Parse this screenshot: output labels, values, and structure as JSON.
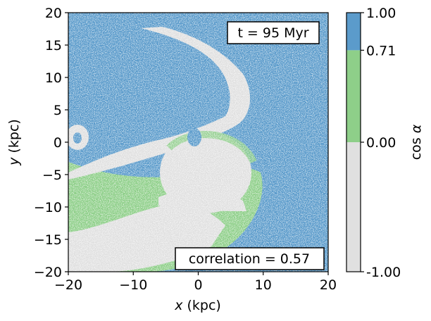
{
  "chart_data": {
    "type": "heatmap",
    "xlabel": "x (kpc)",
    "ylabel": "y (kpc)",
    "xlim": [
      -20,
      20
    ],
    "ylim": [
      -20,
      20
    ],
    "xticks": [
      -20,
      -10,
      0,
      10,
      20
    ],
    "yticks": [
      -20,
      -15,
      -10,
      -5,
      0,
      5,
      10,
      15,
      20
    ],
    "xtick_labels": [
      "−20",
      "−10",
      "0",
      "10",
      "20"
    ],
    "ytick_labels": [
      "−20",
      "−15",
      "−10",
      "−5",
      "0",
      "5",
      "10",
      "15",
      "20"
    ],
    "colorbar": {
      "label": "cos α",
      "boundaries": [
        -1.0,
        0.0,
        0.71,
        1.0
      ],
      "tick_labels": [
        "-1.00",
        "0.00",
        "0.71",
        "1.00"
      ],
      "colors": [
        "#e0e0e0",
        "#8ecf89",
        "#5b9bcb"
      ]
    },
    "annotations": {
      "time": "t = 95 Myr",
      "correlation": "correlation = 0.57"
    }
  }
}
